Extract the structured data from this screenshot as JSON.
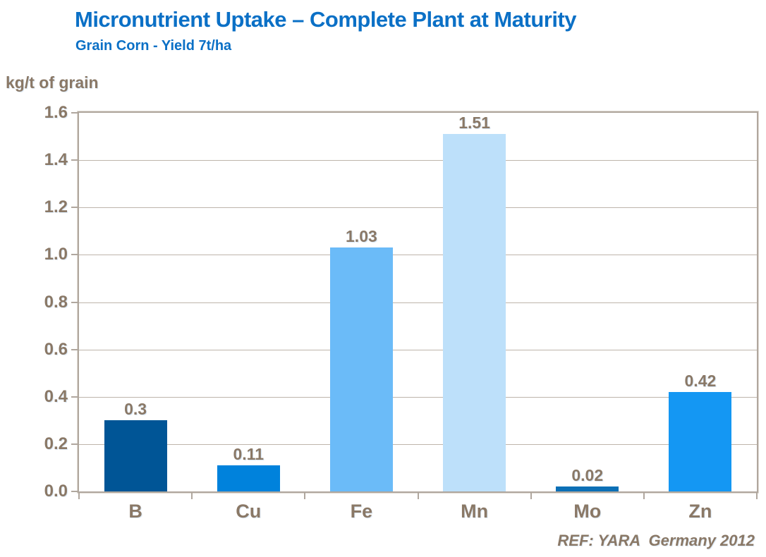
{
  "header": {
    "title": "Micronutrient Uptake – Complete Plant at Maturity",
    "subtitle": "Grain Corn - Yield 7t/ha"
  },
  "footer": {
    "reference": "REF: YARA  Germany 2012"
  },
  "colors": {
    "title_blue": "#0b70c6",
    "label_brown": "#8a7866",
    "frame_tan": "#b0a79e",
    "gridline_tan": "#beb5ab",
    "bars": [
      "#005596",
      "#0082dc",
      "#6bbbf8",
      "#bde0fa",
      "#0b6fb6",
      "#1497f3"
    ]
  },
  "chart_data": {
    "type": "bar",
    "title": "Micronutrient Uptake – Complete Plant at Maturity",
    "subtitle": "Grain Corn - Yield 7t/ha",
    "ylabel": "kg/t of grain",
    "xlabel": "",
    "categories": [
      "B",
      "Cu",
      "Fe",
      "Mn",
      "Mo",
      "Zn"
    ],
    "values": [
      0.3,
      0.11,
      1.03,
      1.51,
      0.02,
      0.42
    ],
    "value_labels": [
      "0.3",
      "0.11",
      "1.03",
      "1.51",
      "0.02",
      "0.42"
    ],
    "bar_colors": [
      "#005596",
      "#0082dc",
      "#6bbbf8",
      "#bde0fa",
      "#0b6fb6",
      "#1497f3"
    ],
    "ylim": [
      0,
      1.6
    ],
    "ytick_step": 0.2,
    "ytick_labels": [
      "0.0",
      "0.2",
      "0.4",
      "0.6",
      "0.8",
      "1.0",
      "1.2",
      "1.4",
      "1.6"
    ],
    "grid": true,
    "legend": false,
    "annotation": "REF: YARA  Germany 2012"
  }
}
